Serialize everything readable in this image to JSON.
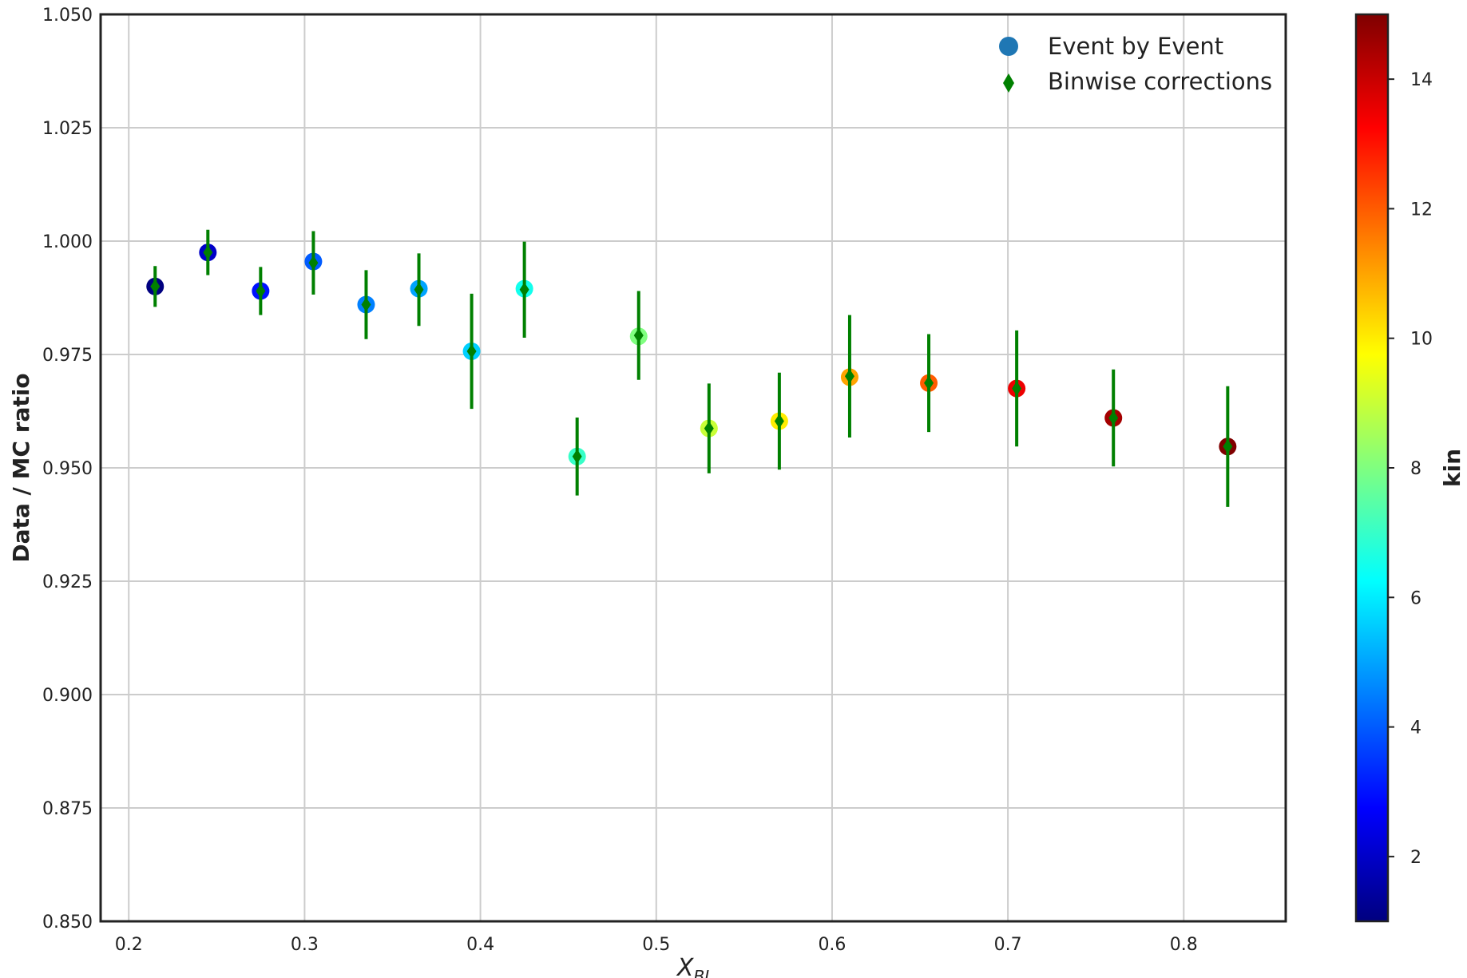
{
  "chart_data": {
    "type": "scatter",
    "xlabel": "X",
    "xlabel_sub": "BJ",
    "ylabel": "Data / MC ratio",
    "xlim": [
      0.184,
      0.858
    ],
    "ylim": [
      0.85,
      1.05
    ],
    "xticks": [
      0.2,
      0.3,
      0.4,
      0.5,
      0.6,
      0.7,
      0.8
    ],
    "xtick_labels": [
      "0.2",
      "0.3",
      "0.4",
      "0.5",
      "0.6",
      "0.7",
      "0.8"
    ],
    "yticks": [
      0.85,
      0.875,
      0.9,
      0.925,
      0.95,
      0.975,
      1.0,
      1.025,
      1.05
    ],
    "ytick_labels": [
      "0.850",
      "0.875",
      "0.900",
      "0.925",
      "0.950",
      "0.975",
      "1.000",
      "1.025",
      "1.050"
    ],
    "grid": true,
    "legend_position": "top-right",
    "series": [
      {
        "name": "Event by Event",
        "marker": "circle",
        "legend_color": "#1f77b4",
        "x": [
          0.215,
          0.245,
          0.275,
          0.305,
          0.335,
          0.365,
          0.395,
          0.425,
          0.455,
          0.49,
          0.53,
          0.57,
          0.61,
          0.655,
          0.705,
          0.76,
          0.825
        ],
        "y": [
          0.99,
          0.9975,
          0.989,
          0.9955,
          0.986,
          0.9895,
          0.9757,
          0.9895,
          0.9525,
          0.979,
          0.9587,
          0.9603,
          0.97,
          0.9687,
          0.9675,
          0.961,
          0.9547
        ],
        "kin": [
          1,
          2,
          3,
          4,
          4.5,
          5,
          5.6,
          6.5,
          7,
          8,
          9,
          10,
          11,
          12,
          13.5,
          14.5,
          15
        ]
      },
      {
        "name": "Binwise corrections",
        "marker": "diamond",
        "color": "#008000",
        "x": [
          0.215,
          0.245,
          0.275,
          0.305,
          0.335,
          0.365,
          0.395,
          0.425,
          0.455,
          0.49,
          0.53,
          0.57,
          0.61,
          0.655,
          0.705,
          0.76,
          0.825
        ],
        "y": [
          0.99,
          0.9975,
          0.989,
          0.9952,
          0.986,
          0.9893,
          0.9757,
          0.9893,
          0.9525,
          0.9792,
          0.9587,
          0.9603,
          0.9702,
          0.9687,
          0.9675,
          0.961,
          0.9547
        ],
        "yerr": [
          0.0045,
          0.005,
          0.0053,
          0.007,
          0.0076,
          0.008,
          0.0127,
          0.0106,
          0.0086,
          0.0098,
          0.0099,
          0.0107,
          0.0135,
          0.0108,
          0.0128,
          0.0107,
          0.0133
        ]
      }
    ],
    "colorbar": {
      "label": "kin",
      "range": [
        1,
        15
      ],
      "ticks": [
        2,
        4,
        6,
        8,
        10,
        12,
        14
      ],
      "tick_labels": [
        "2",
        "4",
        "6",
        "8",
        "10",
        "12",
        "14"
      ],
      "colormap": "jet"
    }
  }
}
